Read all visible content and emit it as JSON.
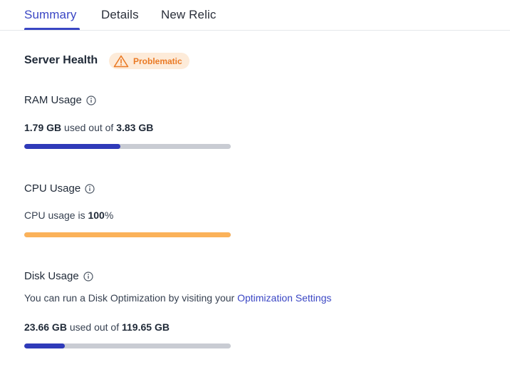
{
  "tabs": [
    {
      "label": "Summary",
      "active": true
    },
    {
      "label": "Details",
      "active": false
    },
    {
      "label": "New Relic",
      "active": false
    }
  ],
  "server_health": {
    "title": "Server Health",
    "status": "Problematic",
    "status_icon": "warning-triangle-icon"
  },
  "ram": {
    "title": "RAM Usage",
    "used": "1.79 GB",
    "used_text": "used out of",
    "total": "3.83 GB",
    "fill_fraction": 0.467,
    "fill_color": "#2f3ab9"
  },
  "cpu": {
    "title": "CPU Usage",
    "prefix": "CPU usage is",
    "value": "100",
    "unit": "%",
    "fill_fraction": 1.0,
    "fill_color": "#fbb25a"
  },
  "disk": {
    "title": "Disk Usage",
    "hint_prefix": "You can run a Disk Optimization by visiting your",
    "hint_link": "Optimization Settings",
    "used": "23.66 GB",
    "used_text": "used out of",
    "total": "119.65 GB",
    "fill_fraction": 0.198,
    "fill_color": "#2f3ab9"
  },
  "colors": {
    "accent": "#3a46c4",
    "warning_bg": "#fdebd9",
    "warning_fg": "#ea7a25",
    "bar_track": "#c9ccd3"
  }
}
